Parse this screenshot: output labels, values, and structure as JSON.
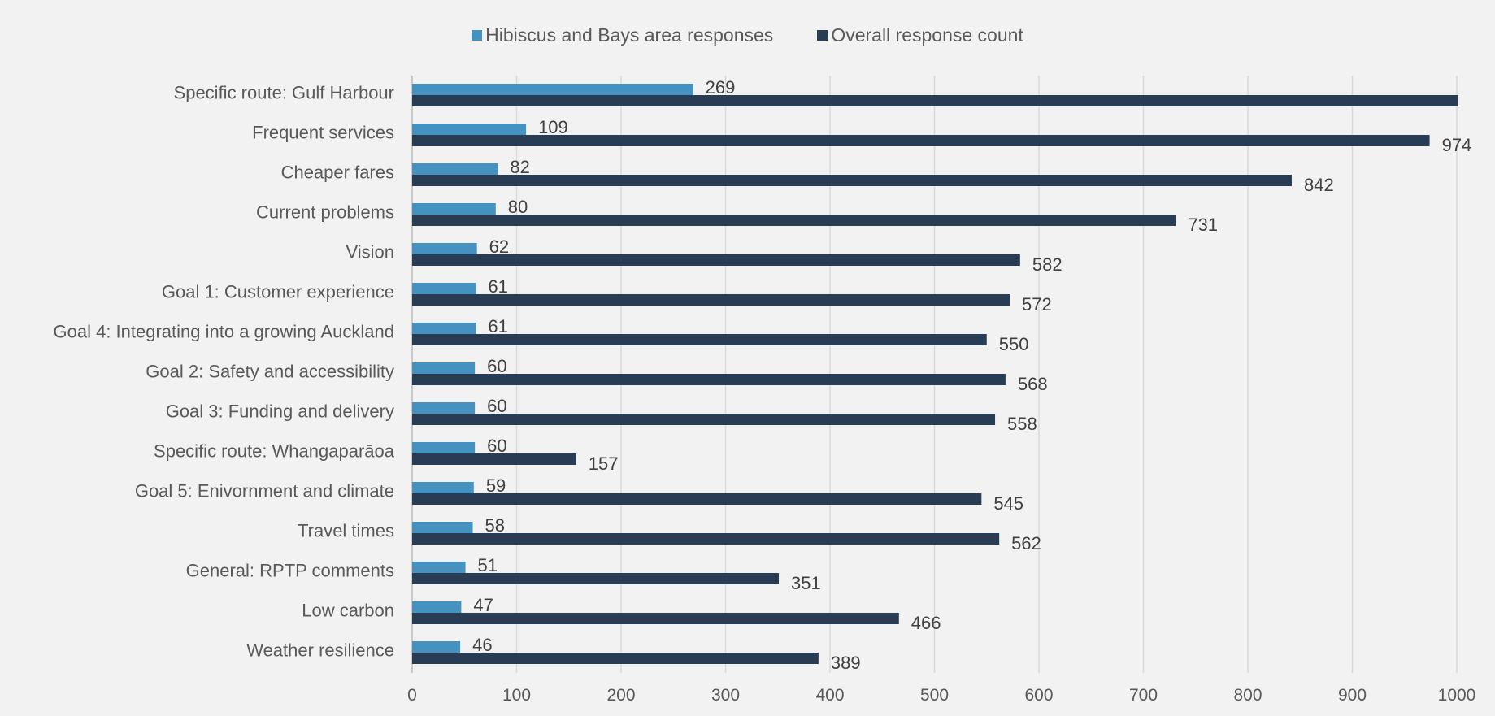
{
  "chart_data": {
    "type": "bar",
    "orientation": "horizontal",
    "categories": [
      "Specific route: Gulf Harbour",
      "Frequent services",
      "Cheaper fares",
      "Current problems",
      "Vision",
      "Goal 1: Customer experience",
      "Goal 4: Integrating into a growing Auckland",
      "Goal 2: Safety and accessibility",
      "Goal 3: Funding and delivery",
      "Specific route: Whangaparāoa",
      "Goal 5: Enivornment and climate",
      "Travel times",
      "General: RPTP comments",
      "Low carbon",
      "Weather resilience"
    ],
    "series": [
      {
        "name": "Hibiscus and Bays area responses",
        "color": "#4591c0",
        "values": [
          269,
          109,
          82,
          80,
          62,
          61,
          61,
          60,
          60,
          60,
          59,
          58,
          51,
          47,
          46
        ],
        "labels": [
          "269",
          "109",
          "82",
          "80",
          "62",
          "61",
          "61",
          "60",
          "60",
          "60",
          "59",
          "58",
          "51",
          "47",
          "46"
        ]
      },
      {
        "name": "Overall response count",
        "color": "#283d53",
        "values": [
          1001,
          974,
          842,
          731,
          582,
          572,
          550,
          568,
          558,
          157,
          545,
          562,
          351,
          466,
          389
        ],
        "labels": [
          "",
          "974",
          "842",
          "731",
          "582",
          "572",
          "550",
          "568",
          "558",
          "157",
          "545",
          "562",
          "351",
          "466",
          "389"
        ]
      }
    ],
    "xlim": [
      0,
      1000
    ],
    "xticks": [
      0,
      100,
      200,
      300,
      400,
      500,
      600,
      700,
      800,
      900,
      1000
    ],
    "title": "",
    "xlabel": "",
    "ylabel": "",
    "grid": "vertical",
    "legend": "top-center"
  }
}
